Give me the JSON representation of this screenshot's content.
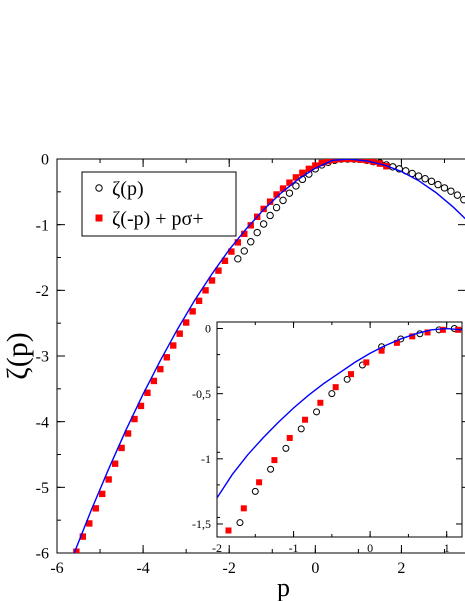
{
  "chart_data": [
    {
      "type": "scatter",
      "role": "main",
      "xlabel": "p",
      "ylabel": "ζ(p)",
      "xlim": [
        -6,
        3.5
      ],
      "ylim": [
        -6,
        0
      ],
      "xticks": [
        -6,
        -4,
        -2,
        0,
        2
      ],
      "xtick_labels": [
        "-6",
        "-4",
        "-2",
        "0",
        "2"
      ],
      "yticks": [
        0,
        -1,
        -2,
        -3,
        -4,
        -5,
        -6
      ],
      "ytick_labels": [
        "0",
        "-1",
        "-2",
        "-3",
        "-4",
        "-5",
        "-6"
      ],
      "grid": false,
      "legend_position": "top-left",
      "series": [
        {
          "name": "ζ(p)",
          "marker": "open-circle",
          "color": "#000000",
          "x": [
            -1.8,
            -1.65,
            -1.5,
            -1.35,
            -1.2,
            -1.05,
            -0.9,
            -0.75,
            -0.6,
            -0.45,
            -0.3,
            -0.15,
            0.0,
            0.15,
            0.3,
            0.45,
            0.6,
            0.75,
            0.9,
            1.05,
            1.2,
            1.35,
            1.5,
            1.65,
            1.8,
            1.95,
            2.1,
            2.25,
            2.4,
            2.55,
            2.7,
            2.85,
            3.0,
            3.15,
            3.3,
            3.45
          ],
          "y": [
            -1.52,
            -1.4,
            -1.26,
            -1.12,
            -0.99,
            -0.86,
            -0.74,
            -0.63,
            -0.52,
            -0.41,
            -0.31,
            -0.23,
            -0.15,
            -0.09,
            -0.05,
            -0.02,
            0.0,
            0.0,
            0.0,
            0.0,
            -0.02,
            -0.04,
            -0.06,
            -0.09,
            -0.12,
            -0.15,
            -0.18,
            -0.22,
            -0.26,
            -0.3,
            -0.34,
            -0.39,
            -0.44,
            -0.49,
            -0.55,
            -0.62
          ]
        },
        {
          "name": "ζ(-p) + pσ+",
          "marker": "filled-square",
          "color": "#ff0000",
          "x": [
            -5.55,
            -5.4,
            -5.25,
            -5.1,
            -4.95,
            -4.8,
            -4.65,
            -4.5,
            -4.35,
            -4.2,
            -4.05,
            -3.9,
            -3.75,
            -3.6,
            -3.45,
            -3.3,
            -3.15,
            -3.0,
            -2.85,
            -2.7,
            -2.55,
            -2.4,
            -2.25,
            -2.1,
            -1.95,
            -1.8,
            -1.65,
            -1.5,
            -1.35,
            -1.2,
            -1.05,
            -0.9,
            -0.75,
            -0.6,
            -0.45,
            -0.3,
            -0.15,
            0.0,
            0.15,
            0.3,
            0.45,
            0.6,
            0.75,
            0.9,
            1.05,
            1.2,
            1.35,
            1.5,
            1.65
          ],
          "y": [
            -5.98,
            -5.75,
            -5.55,
            -5.32,
            -5.1,
            -4.88,
            -4.64,
            -4.4,
            -4.18,
            -3.96,
            -3.76,
            -3.56,
            -3.38,
            -3.2,
            -3.02,
            -2.84,
            -2.66,
            -2.49,
            -2.32,
            -2.16,
            -2.0,
            -1.85,
            -1.7,
            -1.55,
            -1.41,
            -1.27,
            -1.14,
            -1.01,
            -0.88,
            -0.76,
            -0.65,
            -0.54,
            -0.45,
            -0.36,
            -0.28,
            -0.21,
            -0.15,
            -0.1,
            -0.06,
            -0.03,
            -0.01,
            0.0,
            0.0,
            0.0,
            -0.01,
            -0.02,
            -0.04,
            -0.07,
            -0.11
          ]
        },
        {
          "name": "",
          "marker": "line",
          "color": "#0000ff",
          "x": [
            -5.6,
            -5.2,
            -4.8,
            -4.4,
            -4.0,
            -3.6,
            -3.2,
            -2.8,
            -2.4,
            -2.0,
            -1.6,
            -1.2,
            -0.8,
            -0.4,
            0.0,
            0.4,
            0.8,
            1.2,
            1.6,
            2.0,
            2.4,
            2.8,
            3.2,
            3.5
          ],
          "y": [
            -6.0,
            -5.34,
            -4.72,
            -4.13,
            -3.58,
            -3.07,
            -2.59,
            -2.15,
            -1.75,
            -1.38,
            -1.06,
            -0.77,
            -0.52,
            -0.31,
            -0.14,
            -0.02,
            0.0,
            -0.03,
            -0.09,
            -0.19,
            -0.33,
            -0.51,
            -0.73,
            -0.92
          ]
        }
      ]
    },
    {
      "type": "scatter",
      "role": "inset",
      "xlim": [
        -2,
        1.2
      ],
      "ylim": [
        -1.6,
        0.05
      ],
      "xticks": [
        -2,
        -1,
        0,
        1
      ],
      "xtick_labels": [
        "-2",
        "-1",
        "0",
        "1"
      ],
      "yticks": [
        0,
        -0.5,
        -1,
        -1.5
      ],
      "ytick_labels": [
        "0",
        "-0,5",
        "-1",
        "-1,5"
      ],
      "grid": false,
      "series": [
        {
          "name": "ζ(p)",
          "marker": "open-circle",
          "color": "#000000",
          "x": [
            -1.7,
            -1.5,
            -1.3,
            -1.1,
            -0.9,
            -0.7,
            -0.5,
            -0.3,
            -0.1,
            0.15,
            0.4,
            0.65,
            0.9,
            1.1
          ],
          "y": [
            -1.49,
            -1.25,
            -1.08,
            -0.92,
            -0.77,
            -0.64,
            -0.5,
            -0.39,
            -0.28,
            -0.14,
            -0.08,
            -0.04,
            -0.01,
            0.0
          ]
        },
        {
          "name": "ζ(-p) + pσ+",
          "marker": "filled-square",
          "color": "#ff0000",
          "x": [
            -1.85,
            -1.65,
            -1.45,
            -1.25,
            -1.05,
            -0.85,
            -0.65,
            -0.45,
            -0.25,
            -0.05,
            0.15,
            0.35,
            0.55,
            0.75,
            0.95,
            1.15
          ],
          "y": [
            -1.55,
            -1.38,
            -1.18,
            -1.01,
            -0.84,
            -0.7,
            -0.57,
            -0.45,
            -0.35,
            -0.26,
            -0.17,
            -0.11,
            -0.06,
            -0.03,
            -0.01,
            -0.01
          ]
        },
        {
          "name": "",
          "marker": "line",
          "color": "#0000ff",
          "x": [
            -2.0,
            -1.8,
            -1.6,
            -1.4,
            -1.2,
            -1.0,
            -0.8,
            -0.6,
            -0.4,
            -0.2,
            0.0,
            0.2,
            0.4,
            0.6,
            0.8,
            1.0,
            1.2
          ],
          "y": [
            -1.3,
            -1.12,
            -0.97,
            -0.84,
            -0.72,
            -0.61,
            -0.51,
            -0.42,
            -0.34,
            -0.26,
            -0.19,
            -0.13,
            -0.08,
            -0.04,
            -0.01,
            0.0,
            -0.01
          ]
        }
      ]
    }
  ]
}
